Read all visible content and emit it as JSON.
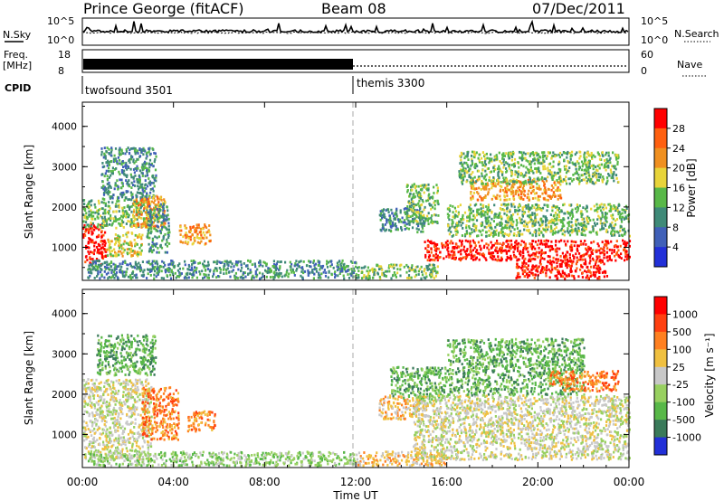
{
  "header": {
    "station": "Prince George (fitACF)",
    "beam": "Beam 08",
    "date": "07/Dec/2011"
  },
  "top_panels": {
    "nsky_label": "N.Sky",
    "nsky_ticks": [
      "10^5",
      "10^0"
    ],
    "nsearch_label": "N.Search",
    "nsearch_ticks": [
      "10^5",
      "10^0"
    ],
    "freq_label_1": "Freq.",
    "freq_label_2": "[MHz]",
    "freq_ticks": [
      "18",
      "8"
    ],
    "nave_label": "Nave",
    "nave_ticks": [
      "60",
      "0"
    ],
    "cpid_label": "CPID",
    "cpid_segments": [
      {
        "name": "twofsound 3501",
        "start_hour": 0,
        "end_hour": 12
      },
      {
        "name": "themis 3300",
        "start_hour": 12,
        "end_hour": 24
      }
    ]
  },
  "x_axis": {
    "label": "Time UT",
    "ticks": [
      "00:00",
      "04:00",
      "08:00",
      "12:00",
      "16:00",
      "20:00",
      "00:00"
    ],
    "range_hours": [
      0,
      24
    ]
  },
  "chart_data": [
    {
      "type": "heatmap",
      "title": "Power",
      "xlabel": "Time UT",
      "ylabel": "Slant Range [km]",
      "xlim_hours": [
        0,
        24
      ],
      "ylim": [
        180,
        4600
      ],
      "y_ticks": [
        "1000",
        "2000",
        "3000",
        "4000"
      ],
      "colorbar": {
        "label": "Power [dB]",
        "ticks": [
          "4",
          "8",
          "12",
          "16",
          "20",
          "24",
          "28"
        ],
        "colors": [
          "#2230d8",
          "#4060b8",
          "#3f8a78",
          "#58b848",
          "#e8d43a",
          "#f09020",
          "#ff6010",
          "#ff0000"
        ]
      },
      "regions": [
        {
          "t0": 0.0,
          "t1": 1.0,
          "r0": 600,
          "r1": 1600,
          "level": 7
        },
        {
          "t0": 0.0,
          "t1": 3.0,
          "r0": 1500,
          "r1": 2200,
          "level": 3
        },
        {
          "t0": 0.8,
          "t1": 3.2,
          "r0": 2200,
          "r1": 3500,
          "level": 2
        },
        {
          "t0": 1.0,
          "t1": 2.6,
          "r0": 800,
          "r1": 1400,
          "level": 4
        },
        {
          "t0": 2.2,
          "t1": 3.6,
          "r0": 1500,
          "r1": 2300,
          "level": 5
        },
        {
          "t0": 2.8,
          "t1": 3.8,
          "r0": 900,
          "r1": 2100,
          "level": 2
        },
        {
          "t0": 4.2,
          "t1": 5.6,
          "r0": 1100,
          "r1": 1600,
          "level": 5
        },
        {
          "t0": 0.2,
          "t1": 12.0,
          "r0": 250,
          "r1": 700,
          "level": 2
        },
        {
          "t0": 12.0,
          "t1": 15.6,
          "r0": 250,
          "r1": 600,
          "level": 3
        },
        {
          "t0": 13.0,
          "t1": 15.0,
          "r0": 1400,
          "r1": 2000,
          "level": 2
        },
        {
          "t0": 14.2,
          "t1": 15.6,
          "r0": 1600,
          "r1": 2600,
          "level": 3
        },
        {
          "t0": 15.0,
          "t1": 24.0,
          "r0": 700,
          "r1": 1200,
          "level": 7
        },
        {
          "t0": 19.0,
          "t1": 23.0,
          "r0": 250,
          "r1": 700,
          "level": 7
        },
        {
          "t0": 16.0,
          "t1": 24.0,
          "r0": 1300,
          "r1": 2100,
          "level": 3
        },
        {
          "t0": 17.0,
          "t1": 21.0,
          "r0": 2200,
          "r1": 2700,
          "level": 5
        },
        {
          "t0": 16.5,
          "t1": 23.5,
          "r0": 2600,
          "r1": 3400,
          "level": 3
        }
      ]
    },
    {
      "type": "heatmap",
      "title": "Velocity",
      "xlabel": "Time UT",
      "ylabel": "Slant Range [km]",
      "xlim_hours": [
        0,
        24
      ],
      "ylim": [
        180,
        4600
      ],
      "y_ticks": [
        "1000",
        "2000",
        "3000",
        "4000"
      ],
      "colorbar": {
        "label": "Velocity [m s⁻¹]",
        "ticks": [
          "1000",
          "500",
          "100",
          "25",
          "-25",
          "-100",
          "-500",
          "-1000"
        ],
        "colors": [
          "#2230d8",
          "#3a7a5a",
          "#58b848",
          "#98d060",
          "#c8c8c8",
          "#f0c040",
          "#ff8020",
          "#ff4010",
          "#ff0000"
        ]
      },
      "regions": [
        {
          "t0": 0.0,
          "t1": 3.0,
          "r0": 400,
          "r1": 2400,
          "level": 4
        },
        {
          "t0": 0.6,
          "t1": 3.2,
          "r0": 2500,
          "r1": 3500,
          "level": 2
        },
        {
          "t0": 2.6,
          "t1": 4.2,
          "r0": 900,
          "r1": 2200,
          "level": 6
        },
        {
          "t0": 4.6,
          "t1": 5.8,
          "r0": 1100,
          "r1": 1600,
          "level": 6
        },
        {
          "t0": 0.2,
          "t1": 12.0,
          "r0": 250,
          "r1": 600,
          "level": 3
        },
        {
          "t0": 12.0,
          "t1": 16.0,
          "r0": 250,
          "r1": 600,
          "level": 5
        },
        {
          "t0": 13.0,
          "t1": 15.0,
          "r0": 1400,
          "r1": 2000,
          "level": 5
        },
        {
          "t0": 13.5,
          "t1": 16.0,
          "r0": 1900,
          "r1": 2700,
          "level": 2
        },
        {
          "t0": 14.5,
          "t1": 24.0,
          "r0": 400,
          "r1": 2000,
          "level": 4
        },
        {
          "t0": 16.0,
          "t1": 22.0,
          "r0": 2000,
          "r1": 3400,
          "level": 2
        },
        {
          "t0": 20.5,
          "t1": 23.5,
          "r0": 2100,
          "r1": 2600,
          "level": 6
        }
      ]
    }
  ]
}
